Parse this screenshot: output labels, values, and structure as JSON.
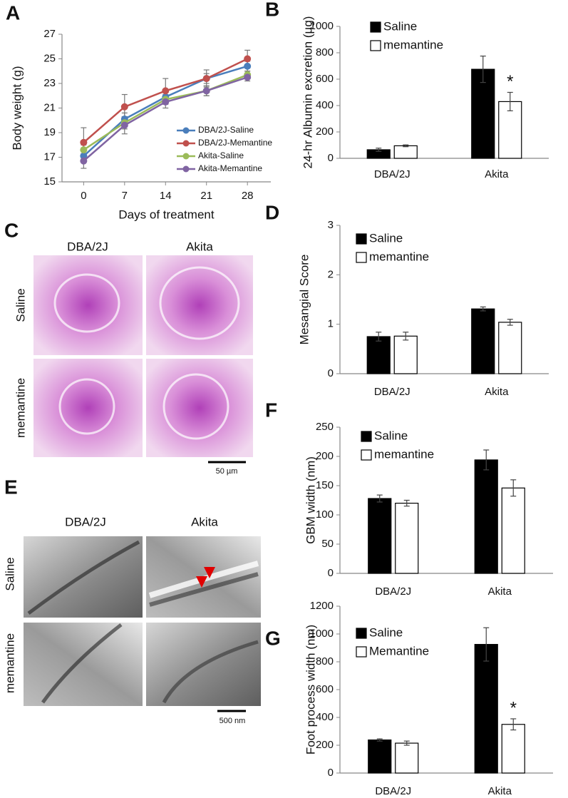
{
  "panel_labels": [
    "A",
    "B",
    "C",
    "D",
    "E",
    "F",
    "G"
  ],
  "image_panels": [
    {
      "columns": [
        "DBA/2J",
        "Akita"
      ],
      "rows": [
        "Saline",
        "memantine"
      ],
      "scale_bar": "50 µm"
    },
    {
      "columns": [
        "DBA/2J",
        "Akita"
      ],
      "rows": [
        "Saline",
        "memantine"
      ],
      "scale_bar": "500 nm"
    }
  ],
  "chart_data": [
    {
      "type": "line",
      "x_label": "Days of treatment",
      "y_label": "Body weight (g)",
      "x": [
        0,
        7,
        14,
        21,
        28
      ],
      "xlim": [
        -3.7,
        32
      ],
      "xticks": [
        0,
        7,
        14,
        21,
        28
      ],
      "ylim": [
        15,
        27
      ],
      "yticks": [
        15,
        17,
        19,
        21,
        23,
        25,
        27
      ],
      "legend": "lower right",
      "series": [
        {
          "name": "DBA/2J-Saline",
          "color": "#4a7ebb",
          "values": [
            17.1,
            20.1,
            21.9,
            23.4,
            24.4
          ],
          "errors": [
            0.4,
            0.5,
            0.5,
            0.4,
            0.4
          ]
        },
        {
          "name": "DBA/2J-Memantine",
          "color": "#c0504d",
          "values": [
            18.2,
            21.1,
            22.4,
            23.4,
            25.0
          ],
          "errors": [
            1.2,
            1.0,
            1.0,
            0.7,
            0.7
          ]
        },
        {
          "name": "Akita-Saline",
          "color": "#9bbb59",
          "values": [
            17.6,
            19.8,
            21.7,
            22.4,
            23.7
          ],
          "errors": [
            0.4,
            0.5,
            0.4,
            0.4,
            0.3
          ]
        },
        {
          "name": "Akita-Memantine",
          "color": "#8064a2",
          "values": [
            16.7,
            19.6,
            21.5,
            22.4,
            23.5
          ],
          "errors": [
            0.6,
            0.7,
            0.5,
            0.4,
            0.3
          ]
        }
      ]
    },
    {
      "type": "bar",
      "y_label": "24-hr Albumin excretion (µg)",
      "categories": [
        "DBA/2J",
        "Akita"
      ],
      "ylim": [
        0,
        1000
      ],
      "yticks": [
        0,
        200,
        400,
        600,
        800,
        1000
      ],
      "legend": "upper left",
      "annotation": "*",
      "series": [
        {
          "name": "Saline",
          "color": "#000000",
          "values": [
            65,
            675
          ],
          "errors": [
            12,
            100
          ]
        },
        {
          "name": "memantine",
          "color": "#ffffff",
          "values": [
            95,
            430
          ],
          "errors": [
            7,
            70
          ]
        }
      ]
    },
    {
      "type": "bar",
      "y_label": "Mesangial Score",
      "categories": [
        "DBA/2J",
        "Akita"
      ],
      "ylim": [
        0,
        3
      ],
      "yticks": [
        0,
        1,
        2,
        3
      ],
      "legend": "upper left",
      "series": [
        {
          "name": "Saline",
          "color": "#000000",
          "values": [
            0.75,
            1.31
          ],
          "errors": [
            0.09,
            0.04
          ]
        },
        {
          "name": "memantine",
          "color": "#ffffff",
          "values": [
            0.76,
            1.04
          ],
          "errors": [
            0.08,
            0.06
          ]
        }
      ]
    },
    {
      "type": "bar",
      "y_label": "GBM width (nm)",
      "categories": [
        "DBA/2J",
        "Akita"
      ],
      "ylim": [
        0,
        250
      ],
      "yticks": [
        0,
        50,
        100,
        150,
        200,
        250
      ],
      "legend": "upper left",
      "series": [
        {
          "name": "Saline",
          "color": "#000000",
          "values": [
            128,
            194
          ],
          "errors": [
            6,
            17
          ]
        },
        {
          "name": "memantine",
          "color": "#ffffff",
          "values": [
            120,
            146
          ],
          "errors": [
            5,
            14
          ]
        }
      ]
    },
    {
      "type": "bar",
      "y_label": "Foot process width (nm)",
      "categories": [
        "DBA/2J",
        "Akita"
      ],
      "ylim": [
        0,
        1200
      ],
      "yticks": [
        0,
        200,
        400,
        600,
        800,
        1000,
        1200
      ],
      "legend": "upper left",
      "annotation": "*",
      "series": [
        {
          "name": "Saline",
          "color": "#000000",
          "values": [
            238,
            925
          ],
          "errors": [
            8,
            120
          ]
        },
        {
          "name": "Memantine",
          "color": "#ffffff",
          "values": [
            215,
            350
          ],
          "errors": [
            15,
            40
          ]
        }
      ]
    }
  ]
}
